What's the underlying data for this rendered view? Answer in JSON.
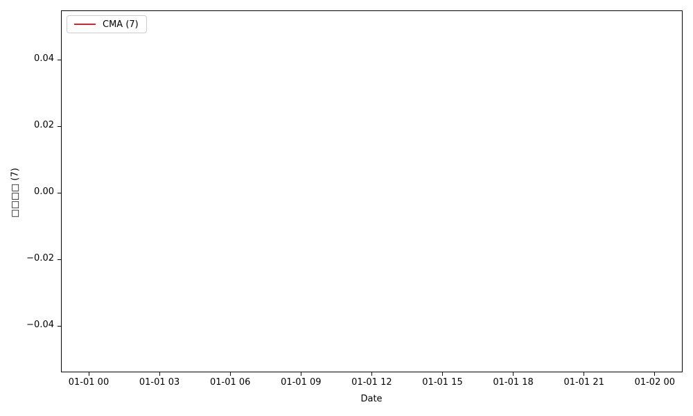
{
  "chart_data": {
    "type": "line",
    "title": "",
    "xlabel": "Date",
    "ylabel": "□□□□ (7)",
    "x_tick_labels": [
      "01-01 00",
      "01-01 03",
      "01-01 06",
      "01-01 09",
      "01-01 12",
      "01-01 15",
      "01-01 18",
      "01-01 21",
      "01-02 00"
    ],
    "y_tick_labels": [
      "0.04",
      "0.02",
      "0.00",
      "−0.02",
      "−0.04"
    ],
    "y_tick_values": [
      0.04,
      0.02,
      0.0,
      -0.02,
      -0.04
    ],
    "ylim": [
      -0.055,
      0.055
    ],
    "grid": false,
    "legend": {
      "location": "upper left",
      "entries": [
        "CMA (7)"
      ]
    },
    "series": [
      {
        "name": "CMA (7)",
        "color": "#d62728",
        "values": []
      }
    ],
    "colors": {
      "background": "#ffffff",
      "axis": "#000000",
      "legend_border": "#cccccc"
    }
  }
}
